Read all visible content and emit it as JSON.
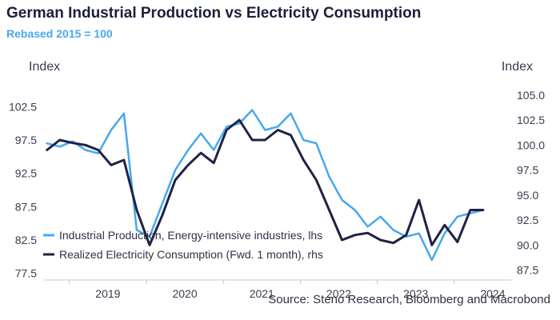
{
  "title": "German Industrial Production vs Electricity Consumption",
  "subtitle": "Rebased 2015 = 100",
  "source": "Source: Steno Research, Bloomberg and Macrobond",
  "colors": {
    "ip": "#45a8f0",
    "elec": "#1f2244",
    "axis": "#c8c8c8"
  },
  "chart_data": {
    "type": "line",
    "x": [
      "2018-09",
      "2018-11",
      "2019-01",
      "2019-03",
      "2019-05",
      "2019-07",
      "2019-09",
      "2019-11",
      "2020-01",
      "2020-03",
      "2020-05",
      "2020-07",
      "2020-09",
      "2020-11",
      "2021-01",
      "2021-03",
      "2021-05",
      "2021-07",
      "2021-09",
      "2021-11",
      "2022-01",
      "2022-03",
      "2022-05",
      "2022-07",
      "2022-09",
      "2022-11",
      "2023-01",
      "2023-03",
      "2023-05",
      "2023-07",
      "2023-09",
      "2023-11",
      "2024-01",
      "2024-03",
      "2024-05"
    ],
    "x_ticks": [
      "2019",
      "2020",
      "2021",
      "2022",
      "2023",
      "2024"
    ],
    "y_left": {
      "label": "Index",
      "ticks": [
        "77.5",
        "82.5",
        "87.5",
        "92.5",
        "97.5",
        "102.5"
      ],
      "ylim": [
        76.5,
        106.5
      ]
    },
    "y_right": {
      "label": "Index",
      "ticks": [
        "87.5",
        "90.0",
        "92.5",
        "95.0",
        "97.5",
        "100.0",
        "102.5",
        "105.0"
      ],
      "ylim": [
        86.5,
        106.5
      ]
    },
    "legend_position": "bottom-left",
    "series": [
      {
        "name": "Industrial Production, Energy-intensive industries, lhs",
        "axis": "left",
        "values": [
          97.0,
          96.5,
          97.3,
          96.0,
          95.5,
          99.0,
          101.5,
          84.0,
          83.0,
          88.0,
          93.0,
          96.0,
          98.5,
          96.0,
          99.5,
          100.0,
          102.0,
          99.0,
          99.5,
          101.5,
          97.5,
          97.0,
          92.0,
          88.5,
          87.0,
          84.5,
          86.0,
          84.0,
          83.0,
          83.5,
          79.5,
          83.5,
          86.0,
          86.5,
          87.0
        ]
      },
      {
        "name": "Realized Electricity Consumption (Fwd. 1 month), rhs",
        "axis": "right",
        "values": [
          99.5,
          100.5,
          100.2,
          100.0,
          99.5,
          98.0,
          98.5,
          93.5,
          90.0,
          93.0,
          96.5,
          98.0,
          99.2,
          98.2,
          101.5,
          102.5,
          100.5,
          100.5,
          101.5,
          101.0,
          98.5,
          96.5,
          93.5,
          90.5,
          91.0,
          91.2,
          90.5,
          90.2,
          91.0,
          94.5,
          90.0,
          92.0,
          90.3,
          93.5,
          93.5
        ]
      }
    ]
  }
}
